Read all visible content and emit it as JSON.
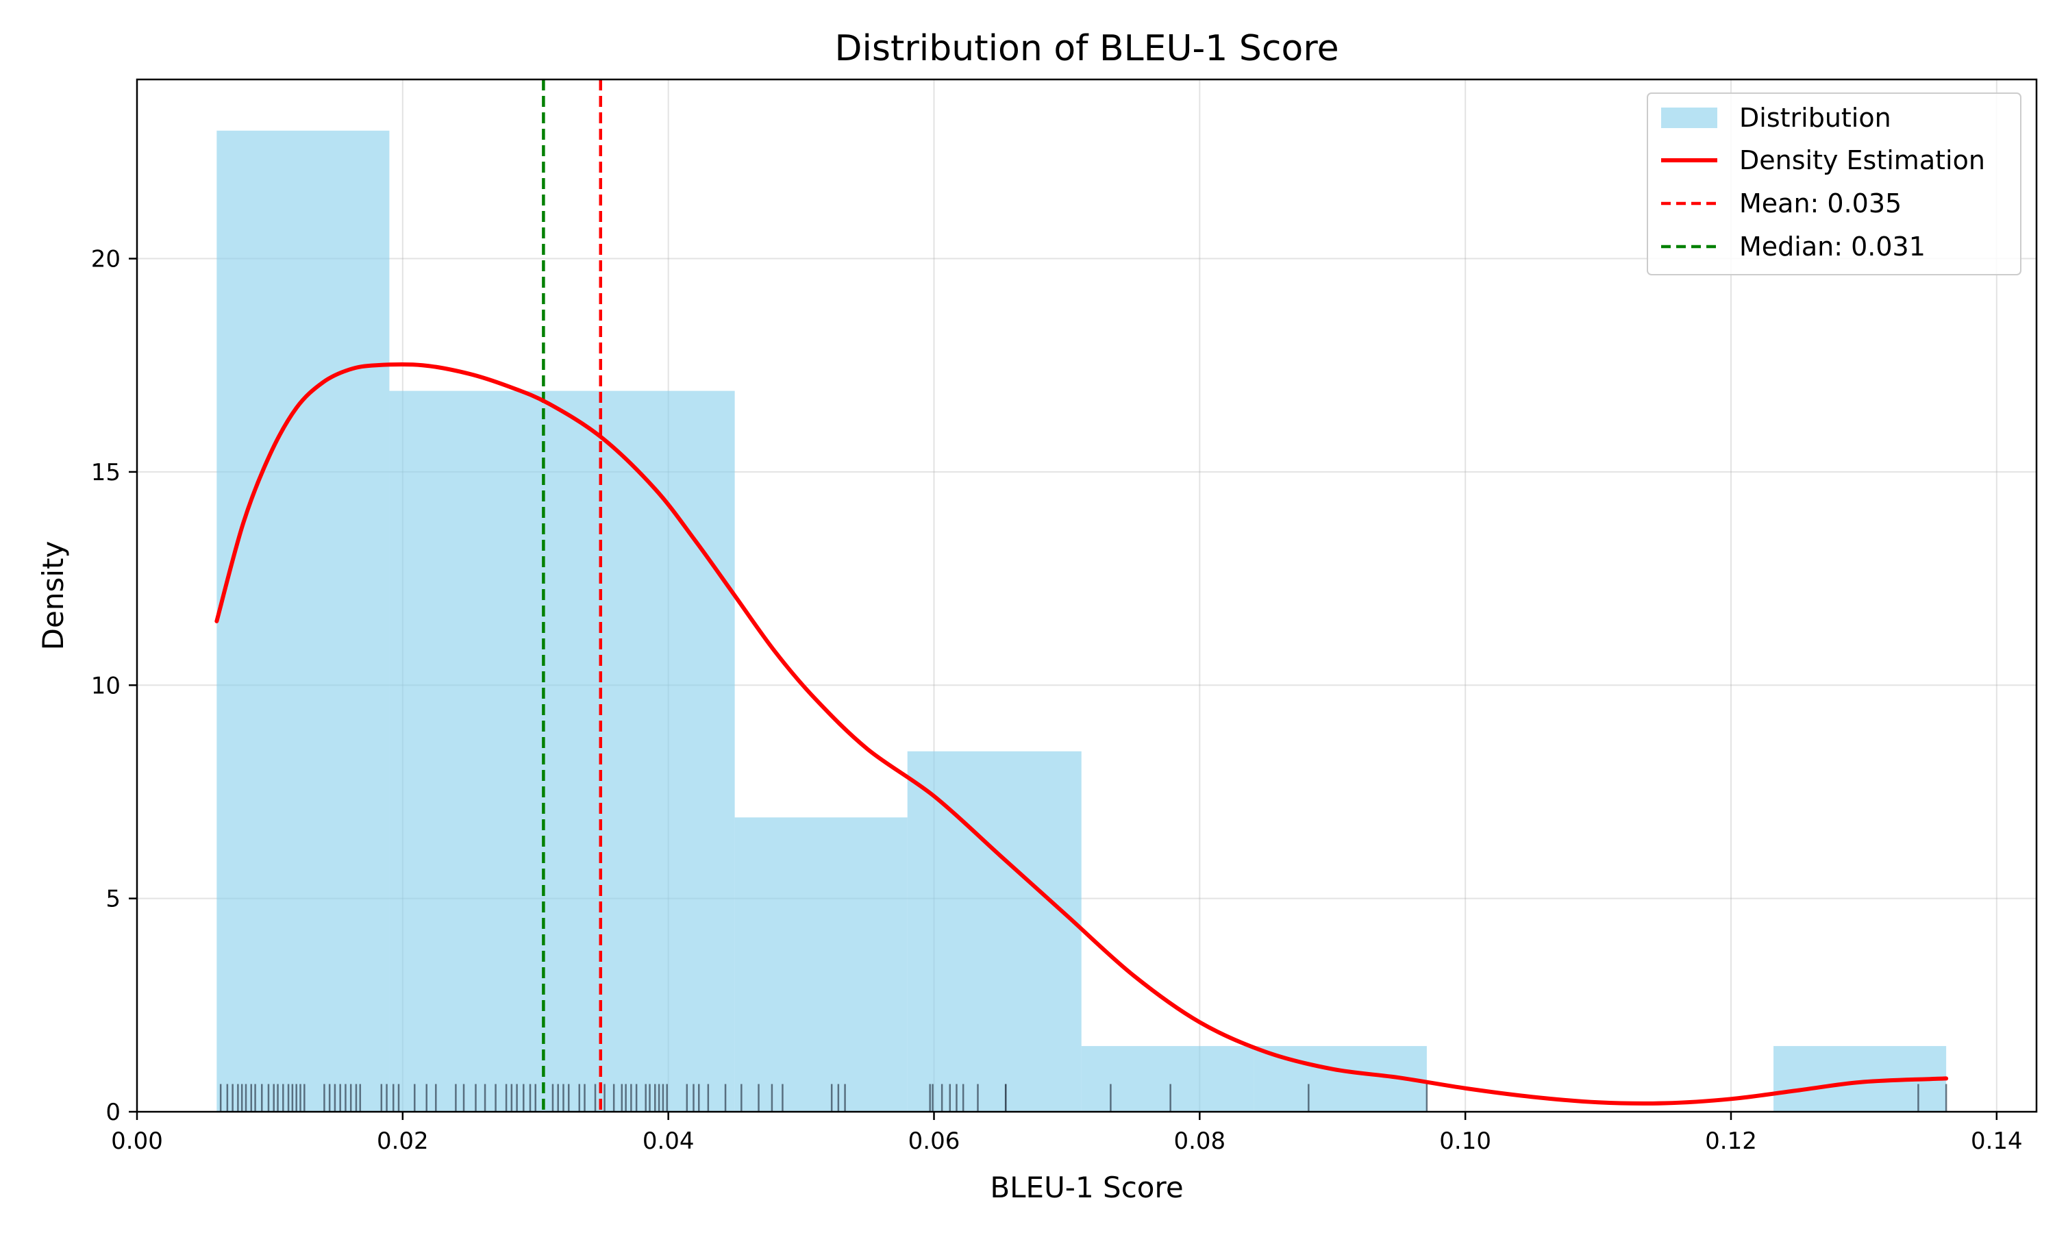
{
  "chart_data": {
    "type": "histogram",
    "title": "Distribution of BLEU-1 Score",
    "xlabel": "BLEU-1 Score",
    "ylabel": "Density",
    "xlim": [
      0.0,
      0.143
    ],
    "ylim": [
      0,
      24.2
    ],
    "x_ticks": [
      0.0,
      0.02,
      0.04,
      0.06,
      0.08,
      0.1,
      0.12,
      0.14
    ],
    "x_tick_labels": [
      "0.00",
      "0.02",
      "0.04",
      "0.06",
      "0.08",
      "0.10",
      "0.12",
      "0.14"
    ],
    "y_ticks": [
      0,
      5,
      10,
      15,
      20
    ],
    "y_tick_labels": [
      "0",
      "5",
      "10",
      "15",
      "20"
    ],
    "grid": true,
    "legend_position": "top-right",
    "histogram": {
      "name": "Distribution",
      "color": "#87CEEB",
      "bins": [
        {
          "x0": 0.006,
          "x1": 0.019,
          "density": 23.0
        },
        {
          "x0": 0.019,
          "x1": 0.032,
          "density": 16.9
        },
        {
          "x0": 0.032,
          "x1": 0.045,
          "density": 16.9
        },
        {
          "x0": 0.045,
          "x1": 0.058,
          "density": 6.9
        },
        {
          "x0": 0.058,
          "x1": 0.0711,
          "density": 8.45
        },
        {
          "x0": 0.0711,
          "x1": 0.0841,
          "density": 1.54
        },
        {
          "x0": 0.0841,
          "x1": 0.0971,
          "density": 1.54
        },
        {
          "x0": 0.0971,
          "x1": 0.1101,
          "density": 0
        },
        {
          "x0": 0.1101,
          "x1": 0.1232,
          "density": 0
        },
        {
          "x0": 0.1232,
          "x1": 0.1362,
          "density": 1.54
        }
      ]
    },
    "density_curve": {
      "name": "Density Estimation",
      "color": "#FF0000",
      "points": [
        [
          0.006,
          11.5
        ],
        [
          0.008,
          13.8
        ],
        [
          0.01,
          15.4
        ],
        [
          0.012,
          16.5
        ],
        [
          0.014,
          17.1
        ],
        [
          0.016,
          17.4
        ],
        [
          0.018,
          17.5
        ],
        [
          0.0215,
          17.5
        ],
        [
          0.025,
          17.3
        ],
        [
          0.028,
          17.0
        ],
        [
          0.031,
          16.6
        ],
        [
          0.035,
          15.8
        ],
        [
          0.039,
          14.6
        ],
        [
          0.042,
          13.4
        ],
        [
          0.045,
          12.1
        ],
        [
          0.048,
          10.8
        ],
        [
          0.051,
          9.7
        ],
        [
          0.055,
          8.5
        ],
        [
          0.06,
          7.4
        ],
        [
          0.065,
          6.0
        ],
        [
          0.07,
          4.6
        ],
        [
          0.075,
          3.2
        ],
        [
          0.08,
          2.1
        ],
        [
          0.085,
          1.4
        ],
        [
          0.09,
          1.0
        ],
        [
          0.095,
          0.8
        ],
        [
          0.1,
          0.55
        ],
        [
          0.105,
          0.35
        ],
        [
          0.11,
          0.22
        ],
        [
          0.115,
          0.2
        ],
        [
          0.12,
          0.3
        ],
        [
          0.125,
          0.5
        ],
        [
          0.13,
          0.7
        ],
        [
          0.1362,
          0.78
        ]
      ]
    },
    "mean_line": {
      "label": "Mean: 0.035",
      "x": 0.0349,
      "color": "#FF0000",
      "style": "dashed"
    },
    "median_line": {
      "label": "Median: 0.031",
      "x": 0.0306,
      "color": "#008000",
      "style": "dashed"
    },
    "rug": {
      "color": "#2f3f4f",
      "x": [
        0.0063,
        0.0068,
        0.0072,
        0.0076,
        0.0079,
        0.0082,
        0.0086,
        0.0089,
        0.0094,
        0.0099,
        0.0103,
        0.0106,
        0.011,
        0.0114,
        0.0117,
        0.012,
        0.0123,
        0.0126,
        0.0141,
        0.0145,
        0.0149,
        0.0153,
        0.0157,
        0.0161,
        0.0165,
        0.0168,
        0.0184,
        0.0188,
        0.0193,
        0.0197,
        0.0209,
        0.0218,
        0.0225,
        0.024,
        0.0246,
        0.0255,
        0.0262,
        0.027,
        0.0278,
        0.0282,
        0.0286,
        0.0291,
        0.0296,
        0.03,
        0.0313,
        0.0317,
        0.0321,
        0.0325,
        0.0333,
        0.0337,
        0.0345,
        0.0352,
        0.0359,
        0.0365,
        0.0368,
        0.0372,
        0.0376,
        0.0383,
        0.0386,
        0.039,
        0.0393,
        0.0396,
        0.0399,
        0.0414,
        0.0419,
        0.0423,
        0.043,
        0.0443,
        0.0455,
        0.0468,
        0.0478,
        0.0486,
        0.0523,
        0.0528,
        0.0533,
        0.0597,
        0.0599,
        0.0606,
        0.0612,
        0.0617,
        0.0622,
        0.0633,
        0.0654,
        0.0654,
        0.0733,
        0.0778,
        0.0882,
        0.0971,
        0.1341,
        0.1362
      ]
    }
  }
}
